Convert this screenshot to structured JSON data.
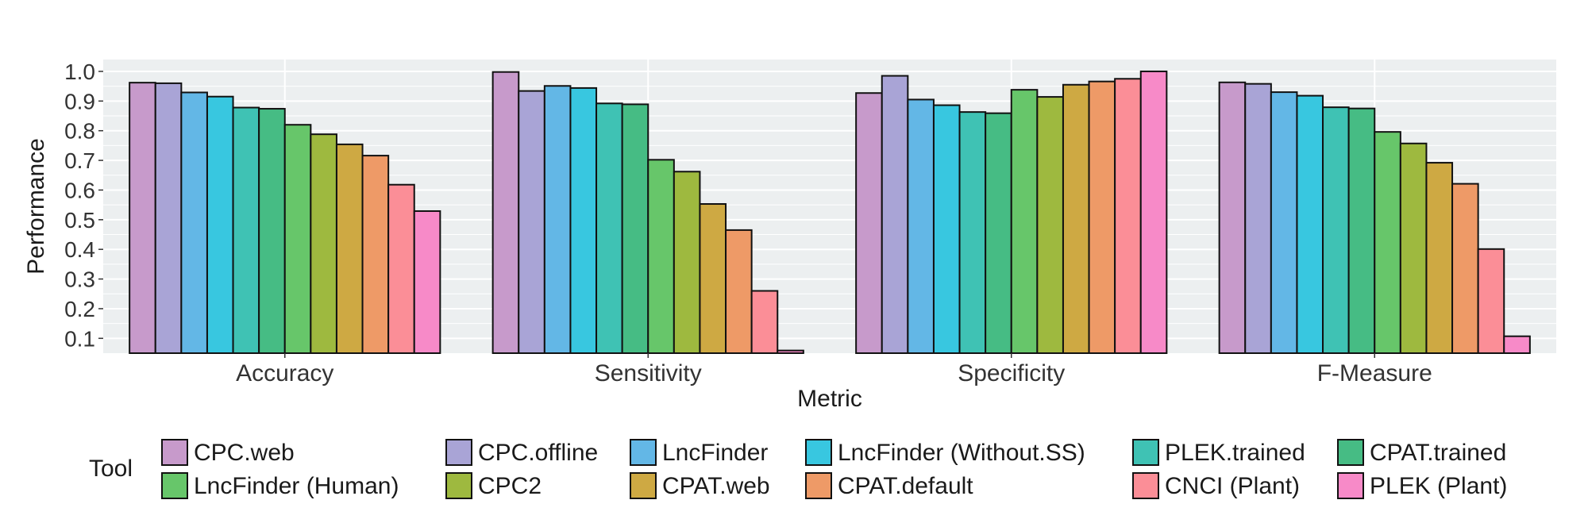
{
  "chart_data": {
    "type": "bar",
    "title": "",
    "xlabel": "Metric",
    "ylabel": "Performance",
    "ylim": [
      0.05,
      1.04
    ],
    "yticks": [
      "0.1",
      "0.2",
      "0.3",
      "0.4",
      "0.5",
      "0.6",
      "0.7",
      "0.8",
      "0.9",
      "1.0"
    ],
    "grid": true,
    "legend_position": "bottom",
    "legend_title": "Tool",
    "categories": [
      "Accuracy",
      "Sensitivity",
      "Specificity",
      "F-Measure"
    ],
    "series": [
      {
        "name": "CPC.web",
        "color": "#C79ACB",
        "values": [
          0.962,
          0.998,
          0.927,
          0.963
        ]
      },
      {
        "name": "CPC.offline",
        "color": "#A9A4D6",
        "values": [
          0.96,
          0.934,
          0.985,
          0.958
        ]
      },
      {
        "name": "LncFinder",
        "color": "#63B7E6",
        "values": [
          0.929,
          0.951,
          0.905,
          0.93
        ]
      },
      {
        "name": "LncFinder (Without.SS)",
        "color": "#38C7E0",
        "values": [
          0.915,
          0.944,
          0.886,
          0.918
        ]
      },
      {
        "name": "PLEK.trained",
        "color": "#3FC2B4",
        "values": [
          0.878,
          0.892,
          0.863,
          0.879
        ]
      },
      {
        "name": "CPAT.trained",
        "color": "#46BC84",
        "values": [
          0.874,
          0.889,
          0.859,
          0.875
        ]
      },
      {
        "name": "LncFinder (Human)",
        "color": "#67C66A",
        "values": [
          0.82,
          0.702,
          0.938,
          0.796
        ]
      },
      {
        "name": "CPC2",
        "color": "#9EB93F",
        "values": [
          0.788,
          0.662,
          0.914,
          0.757
        ]
      },
      {
        "name": "CPAT.web",
        "color": "#CEA943",
        "values": [
          0.754,
          0.553,
          0.955,
          0.692
        ]
      },
      {
        "name": "CPAT.default",
        "color": "#EE9A67",
        "values": [
          0.716,
          0.465,
          0.966,
          0.621
        ]
      },
      {
        "name": "CNCI (Plant)",
        "color": "#FB8E97",
        "values": [
          0.618,
          0.26,
          0.975,
          0.401
        ]
      },
      {
        "name": "PLEK (Plant)",
        "color": "#F78AC8",
        "values": [
          0.529,
          0.059,
          1.0,
          0.107
        ]
      }
    ]
  }
}
